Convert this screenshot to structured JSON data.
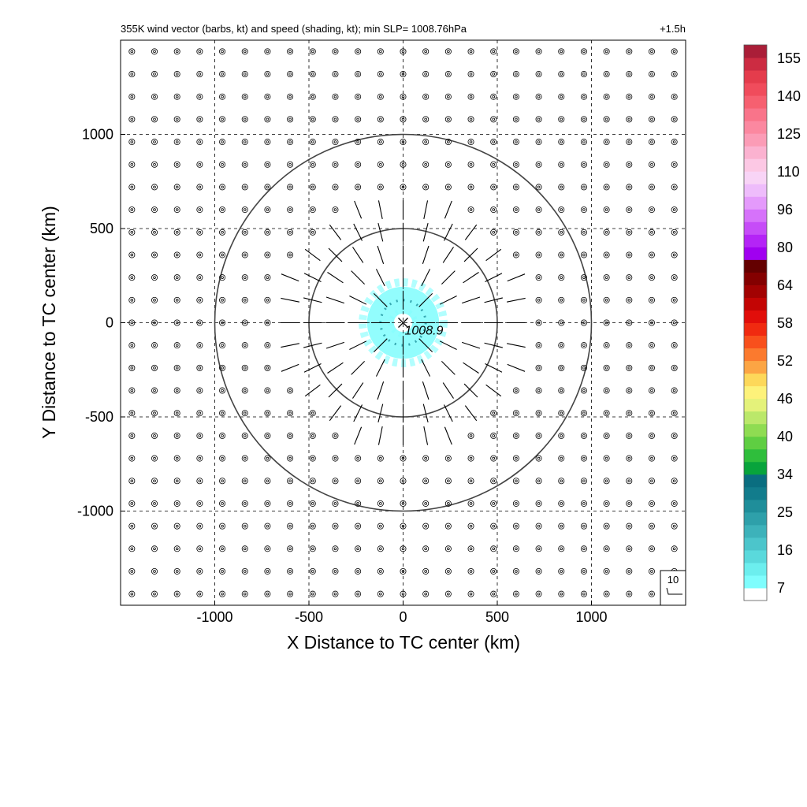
{
  "chart_data": {
    "type": "vector-field",
    "title": "355K wind vector (barbs, kt) and speed (shading, kt); min SLP= 1008.76hPa",
    "time_label": "+1.5h",
    "xlabel": "X Distance to TC center (km)",
    "ylabel": "Y Distance to TC center (km)",
    "xlim": [
      -1500,
      1500
    ],
    "ylim": [
      -1500,
      1500
    ],
    "xticks": [
      -1000,
      -500,
      0,
      500,
      1000
    ],
    "yticks": [
      -1000,
      -500,
      0,
      500,
      1000
    ],
    "xtick_labels": [
      "-1000",
      "-500",
      "0",
      "500",
      "1000"
    ],
    "ytick_labels": [
      "-1000",
      "-500",
      "0",
      "500",
      "1000"
    ],
    "grid": "dashed",
    "range_rings_km": [
      500,
      1000
    ],
    "center": {
      "x": 0,
      "y": 0,
      "label": "1008.9"
    },
    "barb_grid_spacing_km": 120,
    "calm_radius_km": 650,
    "reference_barb_label": "10",
    "colorbar": {
      "tick_labels": [
        "155",
        "140",
        "125",
        "110",
        "96",
        "80",
        "64",
        "58",
        "52",
        "46",
        "40",
        "34",
        "25",
        "16",
        "7"
      ],
      "colors": [
        "#ffffff",
        "#7ffdfd",
        "#6ceeee",
        "#5ad9dc",
        "#4cc5cb",
        "#3db2ba",
        "#2ea0aa",
        "#1f8e9a",
        "#127c8c",
        "#0a6e80",
        "#08a43c",
        "#2fbe3c",
        "#5fce42",
        "#8fdc52",
        "#bbe86a",
        "#e4f27a",
        "#fdf27a",
        "#fdd85a",
        "#fca544",
        "#fb7a2e",
        "#f8501c",
        "#f02a10",
        "#e10e0a",
        "#c30504",
        "#a20202",
        "#840000",
        "#640000",
        "#a000f0",
        "#b424f6",
        "#c64cf8",
        "#d672fa",
        "#e49afb",
        "#eebcfb",
        "#f8d4f6",
        "#fcc8e4",
        "#fbb2d0",
        "#fb9cb6",
        "#fb88a0",
        "#f9748a",
        "#f66070",
        "#f04c5c",
        "#e43c4c",
        "#cc2c42",
        "#aa1e38"
      ],
      "scale": [
        0,
        7,
        10,
        13,
        16,
        19,
        22,
        25,
        28,
        31,
        34,
        36,
        38,
        40,
        42,
        44,
        46,
        48,
        50,
        52,
        54,
        56,
        58,
        60,
        62,
        64,
        72,
        80,
        84,
        88,
        92,
        96,
        100,
        105,
        110,
        115,
        120,
        125,
        130,
        135,
        140,
        145,
        150,
        155,
        160
      ]
    }
  }
}
